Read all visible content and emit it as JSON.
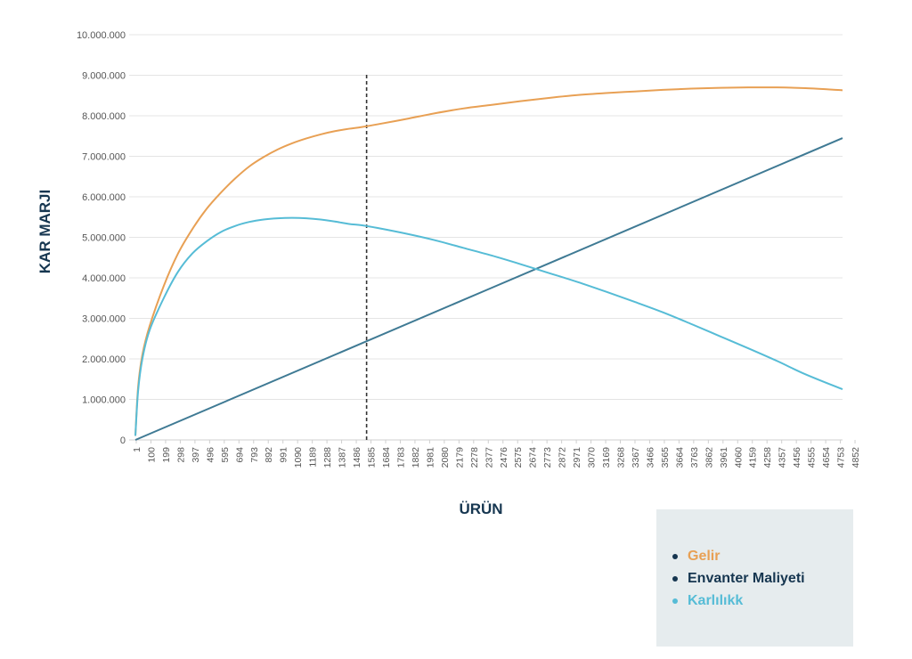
{
  "chart_data": {
    "type": "line",
    "xlabel": "ÜRÜN",
    "ylabel": "KAR MARJI",
    "ylim": [
      0,
      10000000
    ],
    "xlim": [
      1,
      4960
    ],
    "yticks": [
      0,
      1000000,
      2000000,
      3000000,
      4000000,
      5000000,
      6000000,
      7000000,
      8000000,
      9000000,
      10000000
    ],
    "ytick_labels": [
      "0",
      "1.000.000",
      "2.000.000",
      "3.000.000",
      "4.000.000",
      "5.000.000",
      "6.000.000",
      "7.000.000",
      "8.000.000",
      "9.000.000",
      "10.000.000"
    ],
    "xtick_labels": [
      "1",
      "100",
      "199",
      "298",
      "397",
      "496",
      "595",
      "694",
      "793",
      "892",
      "991",
      "1090",
      "1189",
      "1288",
      "1387",
      "1486",
      "1585",
      "1684",
      "1783",
      "1882",
      "1981",
      "2080",
      "2179",
      "2278",
      "2377",
      "2476",
      "2575",
      "2674",
      "2773",
      "2872",
      "2971",
      "3070",
      "3169",
      "3268",
      "3367",
      "3466",
      "3565",
      "3664",
      "3763",
      "3862",
      "3961",
      "4060",
      "4159",
      "4258",
      "4357",
      "4456",
      "4555",
      "4654",
      "4753",
      "4852"
    ],
    "grid": true,
    "legend_position": "bottom-right",
    "vline_x": 1585,
    "series": [
      {
        "name": "Gelir",
        "color": "#e8a054",
        "x": [
          1,
          20,
          50,
          100,
          200,
          300,
          400,
          500,
          600,
          700,
          800,
          900,
          1000,
          1100,
          1200,
          1300,
          1400,
          1500,
          1585,
          1700,
          1900,
          2100,
          2300,
          2500,
          2700,
          2900,
          3100,
          3300,
          3500,
          3700,
          3900,
          4100,
          4300,
          4500,
          4700,
          4960
        ],
        "values": [
          100000,
          1300000,
          2100000,
          2800000,
          3800000,
          4600000,
          5200000,
          5700000,
          6100000,
          6450000,
          6750000,
          6980000,
          7170000,
          7320000,
          7440000,
          7540000,
          7620000,
          7680000,
          7720000,
          7790000,
          7920000,
          8060000,
          8180000,
          8270000,
          8360000,
          8440000,
          8510000,
          8560000,
          8600000,
          8640000,
          8670000,
          8690000,
          8700000,
          8700000,
          8680000,
          8630000
        ]
      },
      {
        "name": "Envanter Maliyeti",
        "color": "#3f7a94",
        "x": [
          1,
          4960
        ],
        "values": [
          0,
          7450000
        ]
      },
      {
        "name": "Karlılıkk",
        "color": "#56bcd6",
        "x": [
          1,
          20,
          50,
          100,
          200,
          300,
          400,
          500,
          600,
          700,
          800,
          900,
          1000,
          1100,
          1200,
          1300,
          1400,
          1500,
          1585,
          1700,
          1900,
          2100,
          2300,
          2500,
          2700,
          2900,
          3100,
          3300,
          3500,
          3700,
          3900,
          4100,
          4300,
          4500,
          4700,
          4960
        ],
        "values": [
          100000,
          1200000,
          2000000,
          2700000,
          3500000,
          4150000,
          4600000,
          4900000,
          5130000,
          5280000,
          5380000,
          5440000,
          5470000,
          5480000,
          5470000,
          5440000,
          5390000,
          5330000,
          5300000,
          5230000,
          5090000,
          4930000,
          4740000,
          4550000,
          4340000,
          4120000,
          3900000,
          3660000,
          3410000,
          3150000,
          2860000,
          2560000,
          2260000,
          1950000,
          1620000,
          1250000
        ]
      }
    ]
  },
  "legend": {
    "items": [
      {
        "label": "Gelir",
        "color": "#e8a054"
      },
      {
        "label": "Envanter Maliyeti",
        "color": "#163650"
      },
      {
        "label": "Karlılıkk",
        "color": "#56bcd6"
      }
    ]
  },
  "colors": {
    "axis_title": "#163650",
    "tick_text": "#555555",
    "grid": "#e4e4e4",
    "vline": "#333333",
    "legend_bg": "#e6ecee"
  }
}
